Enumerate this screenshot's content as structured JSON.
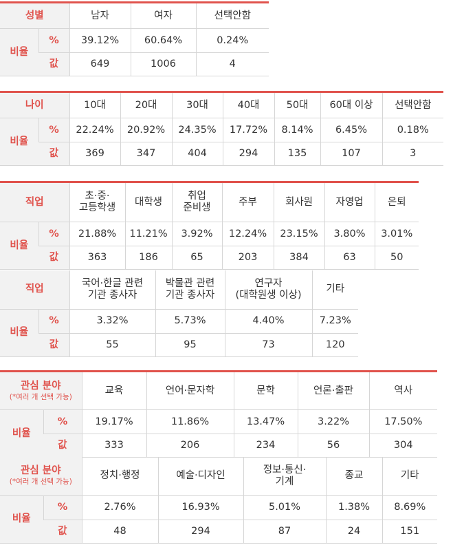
{
  "labels": {
    "ratio": "비율",
    "percent": "%",
    "value": "값"
  },
  "gender": {
    "header": "성별",
    "cols": [
      "남자",
      "여자",
      "선택안함"
    ],
    "percent": [
      "39.12%",
      "60.64%",
      "0.24%"
    ],
    "values": [
      "649",
      "1006",
      "4"
    ]
  },
  "age": {
    "header": "나이",
    "cols": [
      "10대",
      "20대",
      "30대",
      "40대",
      "50대",
      "60대 이상",
      "선택안함"
    ],
    "percent": [
      "22.24%",
      "20.92%",
      "24.35%",
      "17.72%",
      "8.14%",
      "6.45%",
      "0.18%"
    ],
    "values": [
      "369",
      "347",
      "404",
      "294",
      "135",
      "107",
      "3"
    ]
  },
  "job1": {
    "header": "직업",
    "cols": [
      "초·중·\n고등학생",
      "대학생",
      "취업\n준비생",
      "주부",
      "회사원",
      "자영업",
      "은퇴"
    ],
    "percent": [
      "21.88%",
      "11.21%",
      "3.92%",
      "12.24%",
      "23.15%",
      "3.80%",
      "3.01%"
    ],
    "values": [
      "363",
      "186",
      "65",
      "203",
      "384",
      "63",
      "50"
    ]
  },
  "job2": {
    "header": "직업",
    "cols": [
      "국어·한글 관련\n기관 종사자",
      "박물관 관련\n기관 종사자",
      "연구자\n(대학원생 이상)",
      "기타"
    ],
    "percent": [
      "3.32%",
      "5.73%",
      "4.40%",
      "7.23%"
    ],
    "values": [
      "55",
      "95",
      "73",
      "120"
    ]
  },
  "interest1": {
    "header": "관심 분야",
    "note": "(*여러 개 선택 가능)",
    "cols": [
      "교육",
      "언어·문자학",
      "문학",
      "언론·출판",
      "역사"
    ],
    "percent": [
      "19.17%",
      "11.86%",
      "13.47%",
      "3.22%",
      "17.50%"
    ],
    "values": [
      "333",
      "206",
      "234",
      "56",
      "304"
    ]
  },
  "interest2": {
    "header": "관심 분야",
    "note": "(*여러 개 선택 가능)",
    "cols": [
      "정치·행정",
      "예술·디자인",
      "정보·통신·\n기계",
      "종교",
      "기타"
    ],
    "percent": [
      "2.76%",
      "16.93%",
      "5.01%",
      "1.38%",
      "8.69%"
    ],
    "values": [
      "48",
      "294",
      "87",
      "24",
      "151"
    ]
  }
}
